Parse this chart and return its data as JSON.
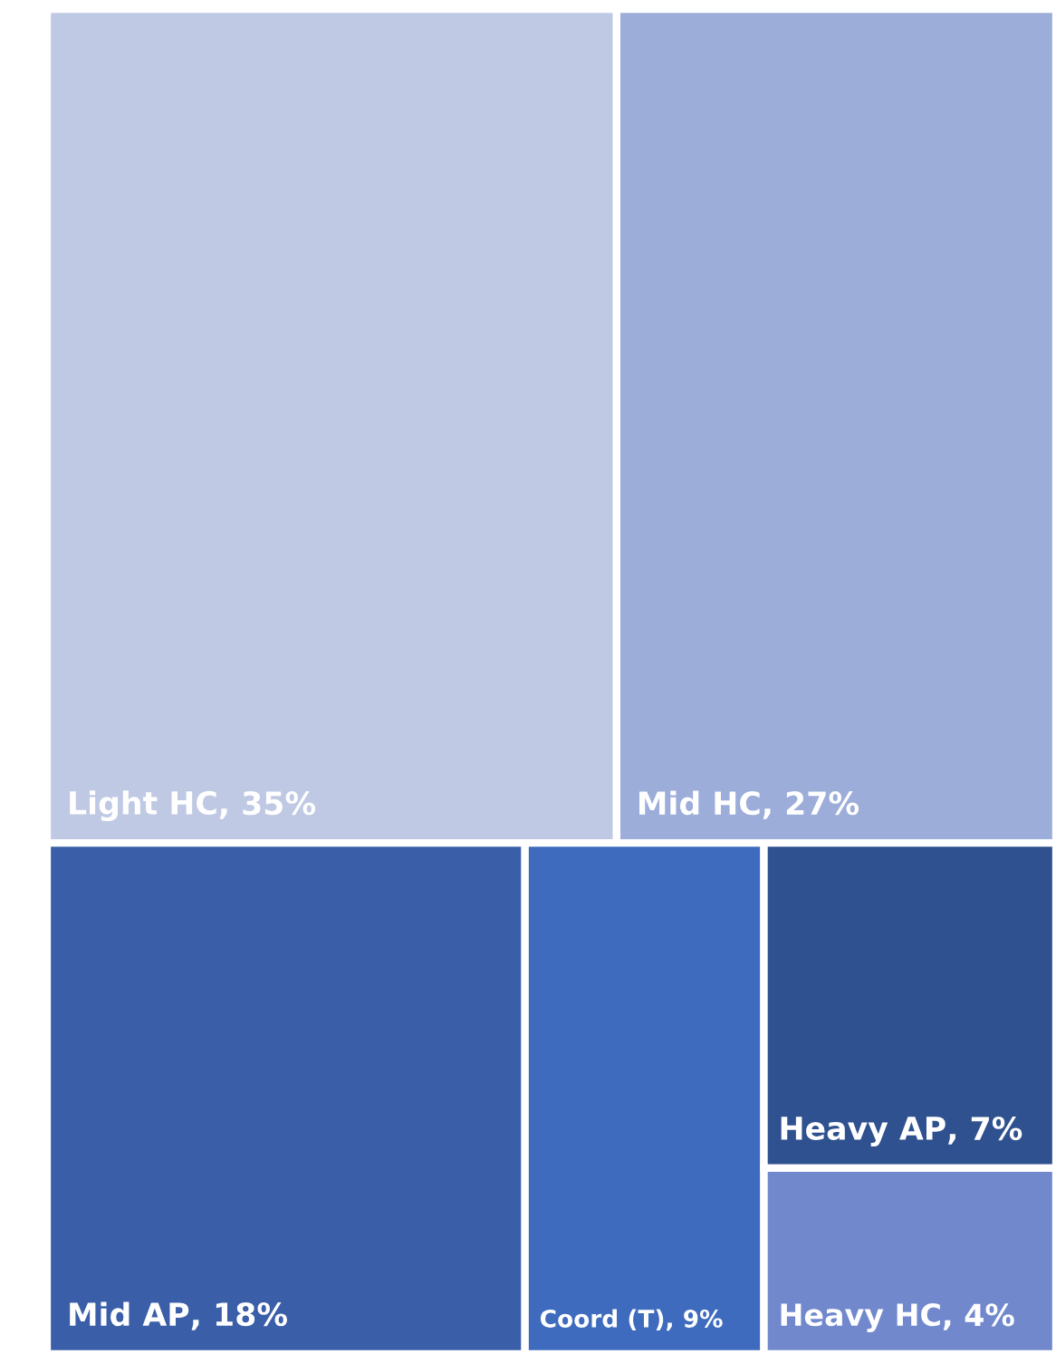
{
  "chart_data": {
    "type": "other",
    "categories": [
      "Light HC",
      "Mid HC",
      "Mid AP",
      "Coord (T)",
      "Heavy AP",
      "Heavy HC"
    ],
    "values": [
      35,
      27,
      18,
      9,
      7,
      4
    ],
    "value_labels": [
      ", 35%",
      ", 27%",
      ", 18%",
      ", 9%",
      ", 7%",
      ", 4%"
    ],
    "colors": [
      "#c0c9e4",
      "#9dadd9",
      "#3a5ea8",
      "#3e6bbd",
      "#2f518f",
      "#7189cc"
    ]
  }
}
